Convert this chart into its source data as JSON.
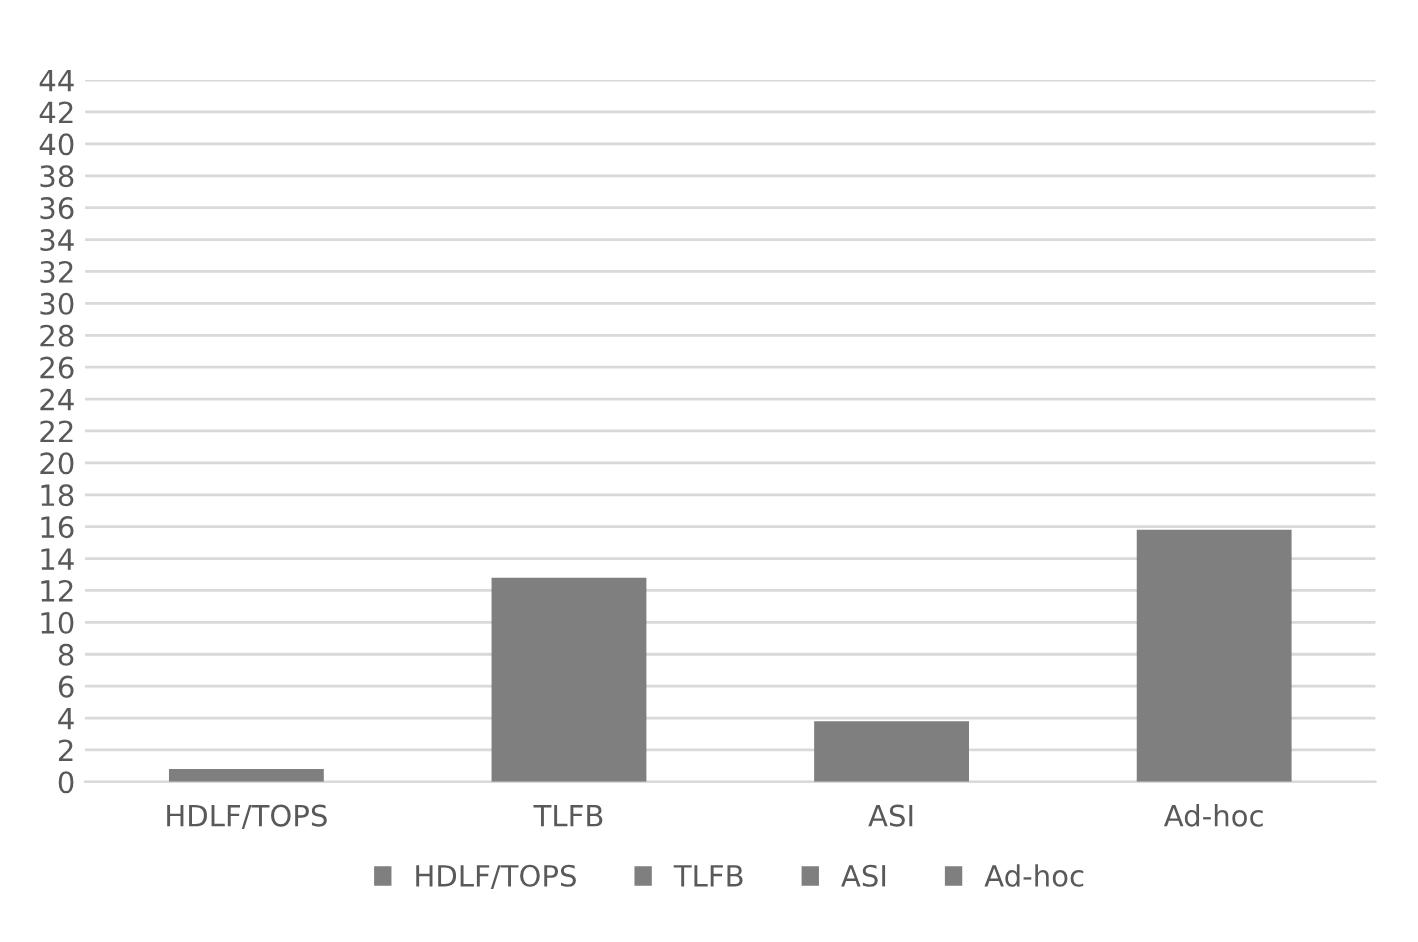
{
  "chart_data": {
    "type": "bar",
    "categories": [
      "HDLF/TOPS",
      "TLFB",
      "ASI",
      "Ad-hoc"
    ],
    "series": [
      {
        "name": "HDLF/TOPS",
        "color": "#7f7f7f",
        "values": [
          0.8,
          null,
          null,
          null
        ]
      },
      {
        "name": "TLFB",
        "color": "#7f7f7f",
        "values": [
          null,
          12.8,
          null,
          null
        ]
      },
      {
        "name": "ASI",
        "color": "#7f7f7f",
        "values": [
          null,
          null,
          3.8,
          null
        ]
      },
      {
        "name": "Ad-hoc",
        "color": "#7f7f7f",
        "values": [
          null,
          null,
          null,
          15.8
        ]
      }
    ],
    "ylim": [
      0,
      44
    ],
    "yticks": [
      0,
      2,
      4,
      6,
      8,
      10,
      12,
      14,
      16,
      18,
      20,
      22,
      24,
      26,
      28,
      30,
      32,
      34,
      36,
      38,
      40,
      42,
      44
    ],
    "grid": "y",
    "legend": "bottom"
  }
}
